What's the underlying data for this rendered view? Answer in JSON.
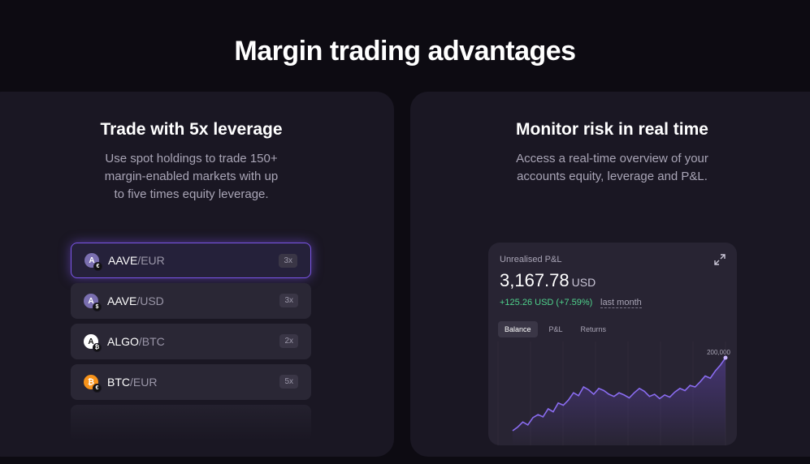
{
  "page": {
    "title": "Margin trading advantages"
  },
  "leverage_card": {
    "title": "Trade with 5x leverage",
    "description": "Use spot holdings to trade 150+ margin-enabled markets with up to five times equity leverage.",
    "pairs": [
      {
        "base": "AAVE",
        "quote": "/EUR",
        "leverage": "3x",
        "coin_letter": "A",
        "sub_symbol": "€",
        "coin_color": "#7a6fb0",
        "selected": true
      },
      {
        "base": "AAVE",
        "quote": "/USD",
        "leverage": "3x",
        "coin_letter": "A",
        "sub_symbol": "$",
        "coin_color": "#7a6fb0",
        "selected": false
      },
      {
        "base": "ALGO",
        "quote": "/BTC",
        "leverage": "2x",
        "coin_letter": "A",
        "sub_symbol": "₿",
        "coin_color": "#ffffff",
        "selected": false
      },
      {
        "base": "BTC",
        "quote": "/EUR",
        "leverage": "5x",
        "coin_letter": "₿",
        "sub_symbol": "€",
        "coin_color": "#f7931a",
        "selected": false
      }
    ]
  },
  "risk_card": {
    "title": "Monitor risk in real time",
    "description": "Access a real-time overview of your accounts equity, leverage and P&L.",
    "pnl_widget": {
      "label": "Unrealised P&L",
      "value": "3,167.78",
      "unit": "USD",
      "change": "+125.26 USD (+7.59%)",
      "period": "last month",
      "tabs": [
        "Balance",
        "P&L",
        "Returns"
      ],
      "active_tab": "Balance",
      "y_max_label": "200,000"
    }
  },
  "colors": {
    "accent": "#7b55e8",
    "positive": "#4fd28c",
    "card_bg": "#1a1723"
  },
  "chart_data": {
    "type": "line",
    "series": [
      {
        "values": [
          100,
          105,
          112,
          108,
          118,
          122,
          119,
          130,
          126,
          138,
          135,
          142,
          152,
          148,
          160,
          156,
          150,
          158,
          155,
          150,
          147,
          152,
          149,
          145,
          152,
          158,
          154,
          147,
          150,
          144,
          149,
          146,
          153,
          158,
          155,
          162,
          160,
          167,
          175,
          172,
          182,
          190,
          200
        ]
      }
    ],
    "ylim": [
      80,
      200
    ],
    "grid": true
  }
}
